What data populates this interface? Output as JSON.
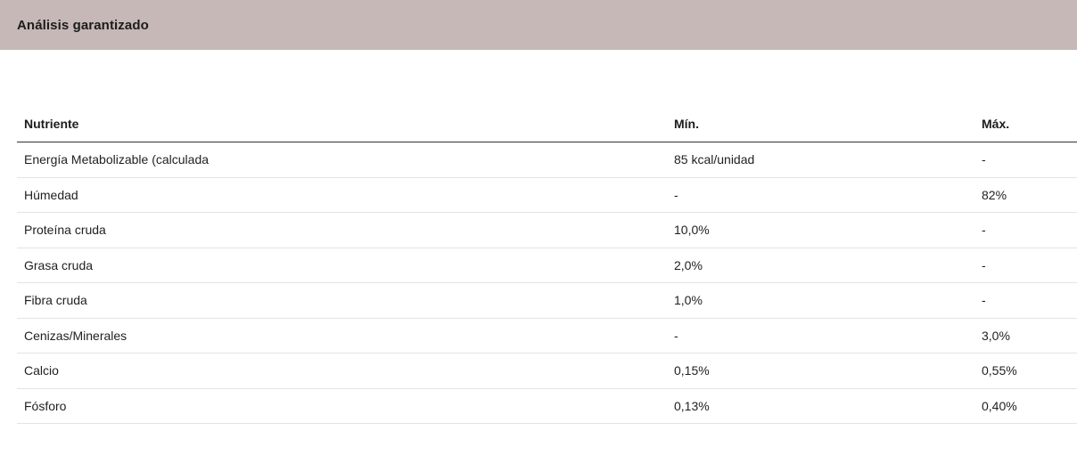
{
  "section": {
    "title": "Análisis garantizado"
  },
  "table": {
    "headers": [
      "Nutriente",
      "Mín.",
      "Máx."
    ],
    "rows": [
      [
        "Energía Metabolizable (calculada",
        "85 kcal/unidad",
        "-"
      ],
      [
        "Húmedad",
        "-",
        "82%"
      ],
      [
        "Proteína cruda",
        "10,0%",
        "-"
      ],
      [
        "Grasa cruda",
        "2,0%",
        "-"
      ],
      [
        "Fibra cruda",
        "1,0%",
        "-"
      ],
      [
        "Cenizas/Minerales",
        "-",
        "3,0%"
      ],
      [
        "Calcio",
        "0,15%",
        "0,55%"
      ],
      [
        "Fósforo",
        "0,13%",
        "0,40%"
      ]
    ]
  }
}
